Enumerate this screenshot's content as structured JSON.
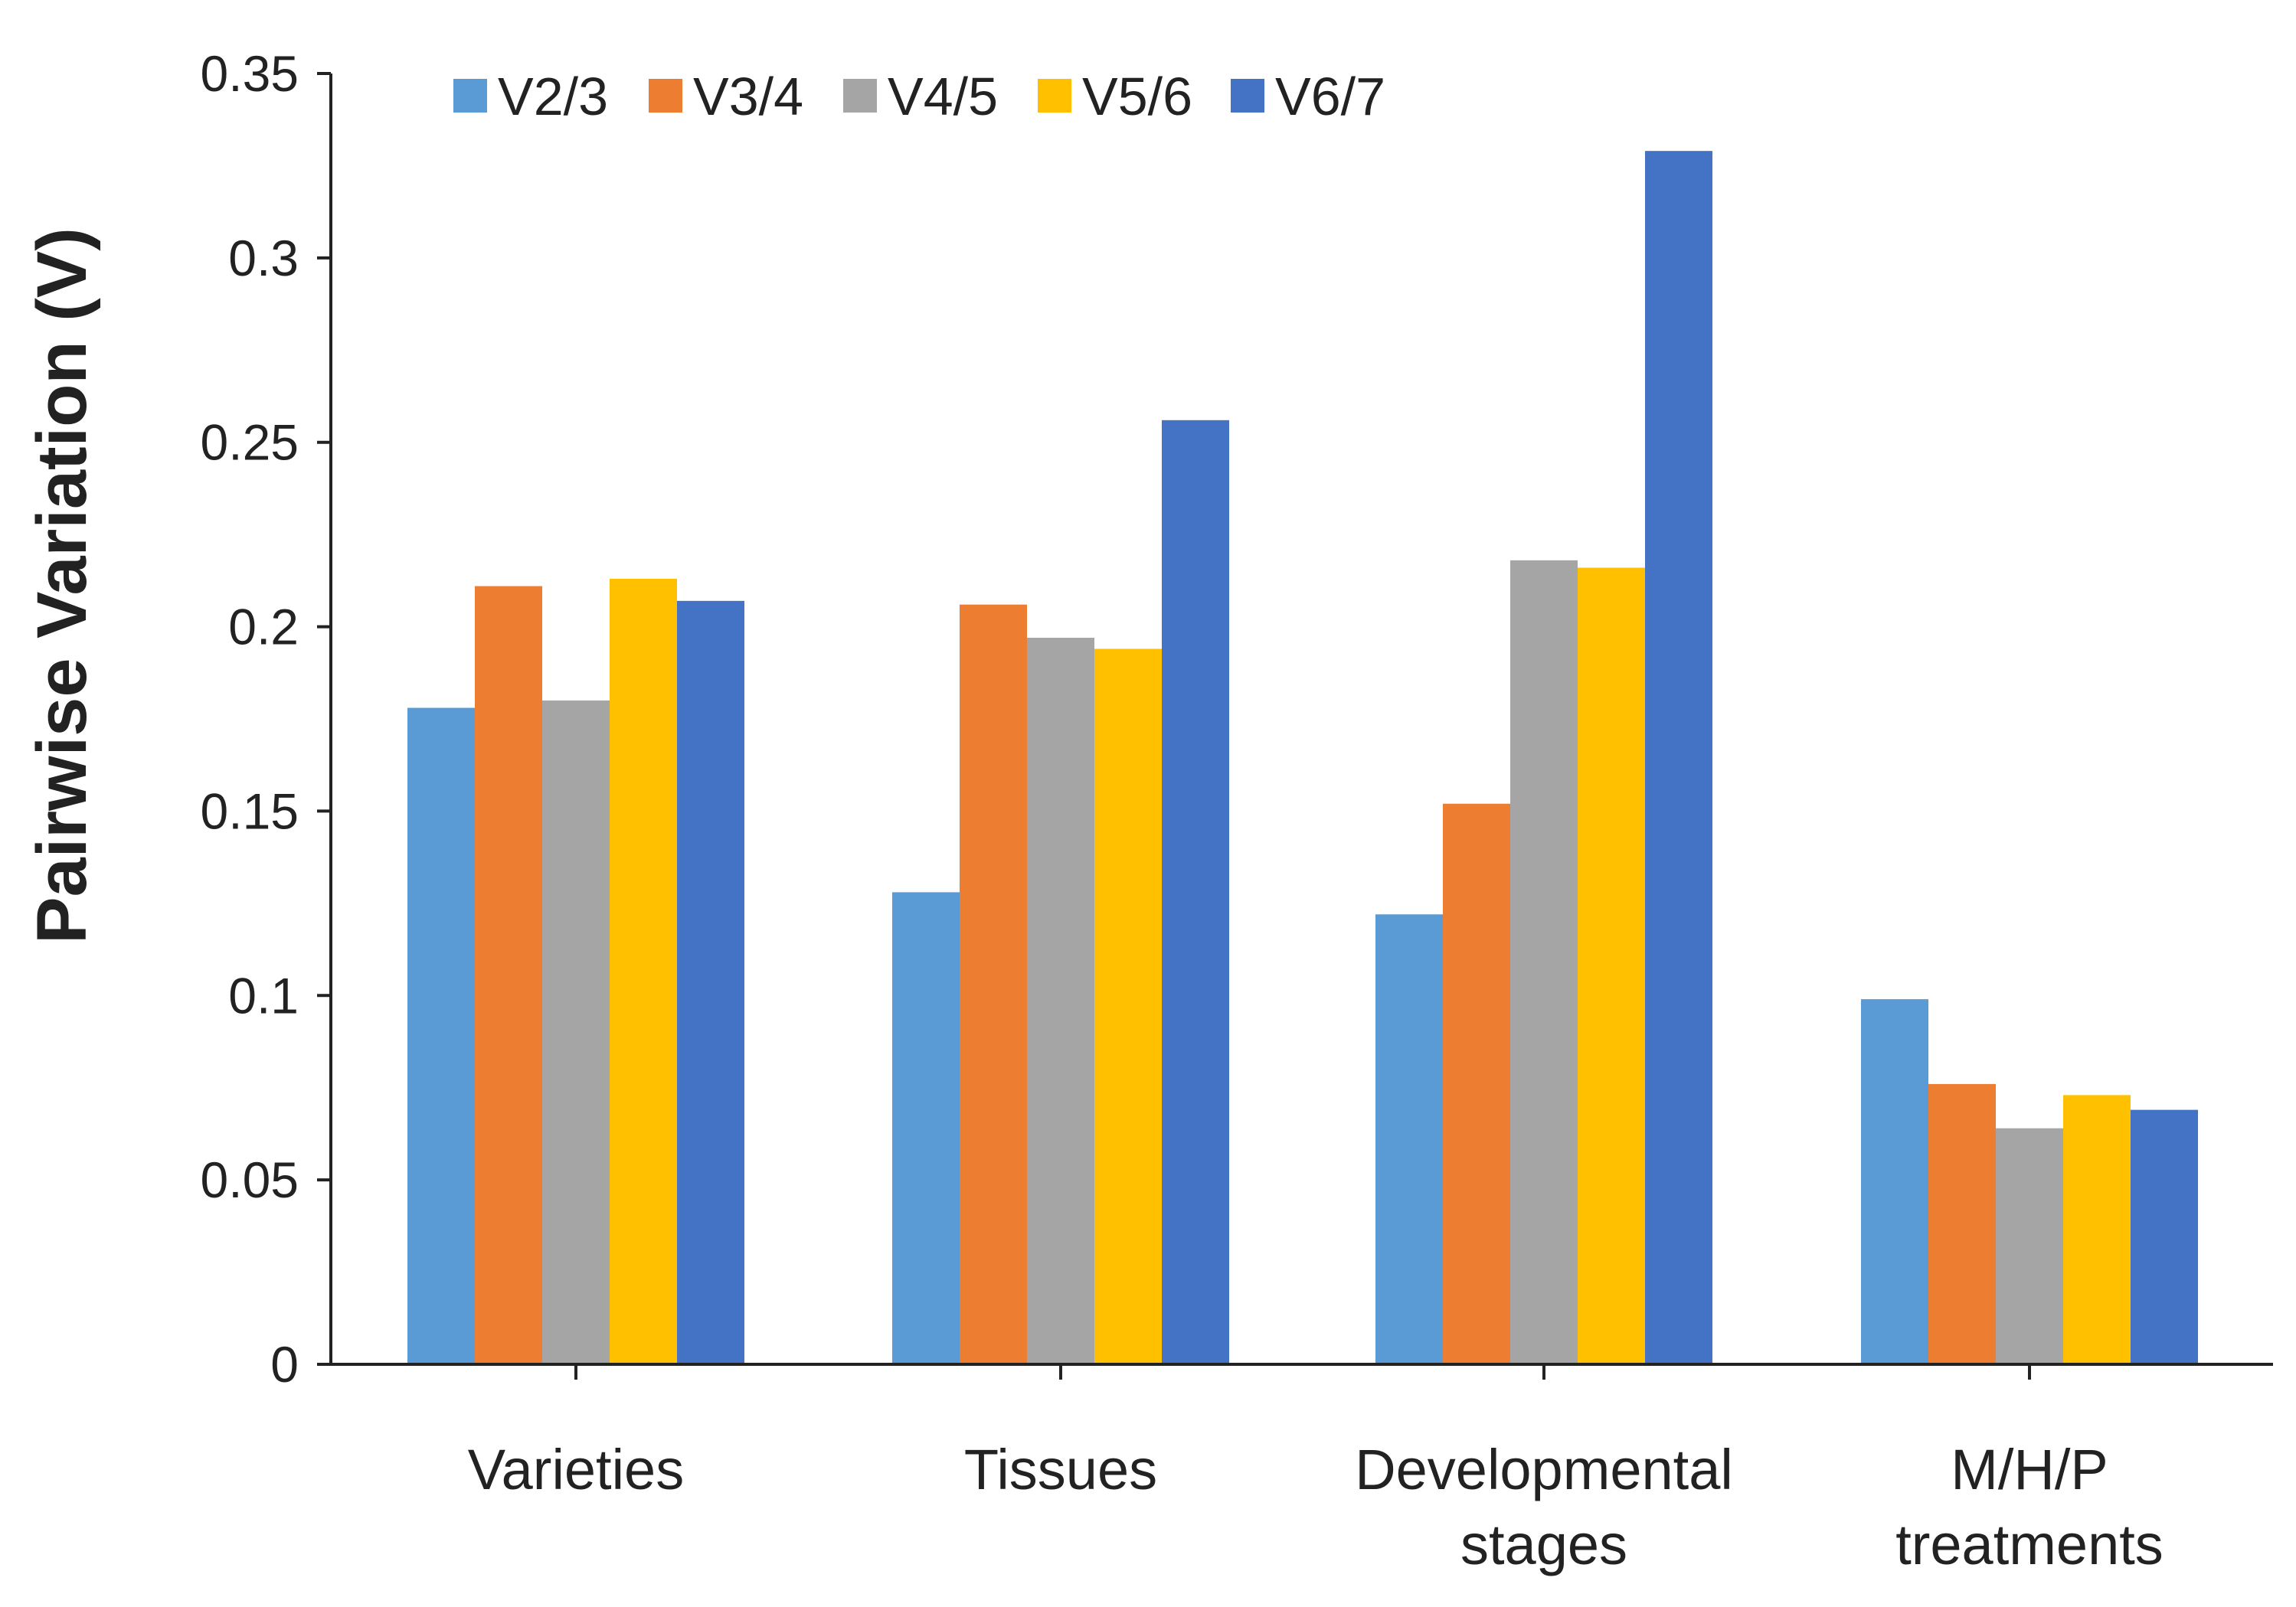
{
  "chart_data": {
    "type": "bar",
    "title": "",
    "xlabel": "",
    "ylabel": "Pairwise Variation (V)",
    "ylim": [
      0,
      0.35
    ],
    "yticks": [
      0,
      0.05,
      0.1,
      0.15,
      0.2,
      0.25,
      0.3,
      0.35
    ],
    "ytick_labels": [
      "0",
      "0.05",
      "0.1",
      "0.15",
      "0.2",
      "0.25",
      "0.3",
      "0.35"
    ],
    "grid": false,
    "legend_position": "top-left",
    "categories": [
      [
        "Varieties"
      ],
      [
        "Tissues"
      ],
      [
        "Developmental",
        "stages"
      ],
      [
        "M/H/P",
        "treatments"
      ]
    ],
    "series": [
      {
        "name": "V2/3",
        "color": "#5B9BD5",
        "values": [
          0.178,
          0.128,
          0.122,
          0.099
        ]
      },
      {
        "name": "V3/4",
        "color": "#ED7D31",
        "values": [
          0.211,
          0.206,
          0.152,
          0.076
        ]
      },
      {
        "name": "V4/5",
        "color": "#A5A5A5",
        "values": [
          0.18,
          0.197,
          0.218,
          0.064
        ]
      },
      {
        "name": "V5/6",
        "color": "#FFC000",
        "values": [
          0.213,
          0.194,
          0.216,
          0.073
        ]
      },
      {
        "name": "V6/7",
        "color": "#4472C4",
        "values": [
          0.207,
          0.256,
          0.329,
          0.069
        ]
      }
    ]
  }
}
